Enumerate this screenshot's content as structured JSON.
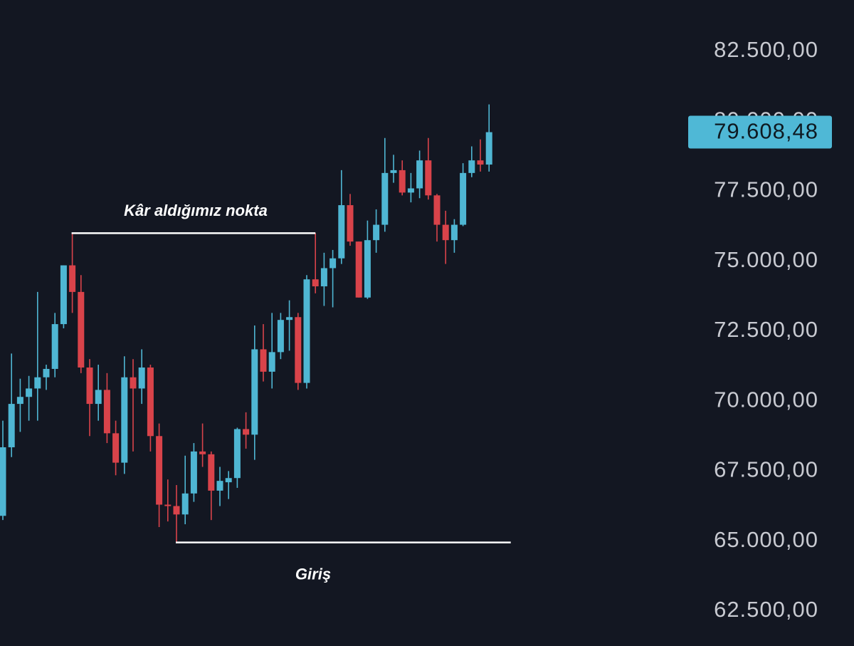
{
  "chart_data": {
    "type": "candlestick",
    "up_color": "#4fb6d3",
    "down_color": "#d9434a",
    "open": [
      65900,
      68350,
      69900,
      70150,
      70450,
      70850,
      71150,
      72750,
      74850,
      73900,
      71200,
      69900,
      70400,
      68850,
      67800,
      70850,
      70450,
      71200,
      68750,
      66300,
      66250,
      65950,
      66700,
      68200,
      68100,
      66800,
      67100,
      67250,
      69000,
      68800,
      71850,
      71050,
      71750,
      72900,
      73000,
      70650,
      74350,
      74100,
      74750,
      75100,
      77000,
      75700,
      73700,
      75750,
      76300,
      78150,
      78250,
      77450,
      77600,
      78600,
      77350,
      76300,
      75750,
      76300,
      78150,
      78600,
      78450
    ],
    "high": [
      69300,
      71700,
      70800,
      70900,
      73900,
      71300,
      73150,
      74850,
      76000,
      74500,
      71500,
      71300,
      71000,
      69300,
      71600,
      71500,
      71850,
      71300,
      69200,
      67200,
      67000,
      68050,
      68500,
      69200,
      68200,
      67650,
      67500,
      69050,
      69600,
      72700,
      72750,
      73150,
      73150,
      73600,
      73150,
      74500,
      76000,
      75300,
      75400,
      78250,
      77400,
      75700,
      76450,
      76850,
      79400,
      78800,
      78600,
      78150,
      78950,
      79400,
      77400,
      76800,
      76500,
      78500,
      79100,
      79350,
      80600
    ],
    "low": [
      65750,
      68000,
      68900,
      69300,
      69300,
      70400,
      70850,
      72600,
      73150,
      71000,
      68750,
      69300,
      68500,
      67350,
      67400,
      68200,
      69900,
      68200,
      65500,
      65700,
      64950,
      65600,
      66400,
      67650,
      65750,
      66250,
      66500,
      66900,
      68300,
      67900,
      70700,
      70450,
      71500,
      71800,
      70400,
      70450,
      73850,
      73400,
      73350,
      74900,
      75550,
      73700,
      73650,
      75300,
      76050,
      77800,
      77350,
      77100,
      77250,
      77200,
      75700,
      74900,
      75300,
      76250,
      78000,
      78200,
      78200
    ],
    "close": [
      68350,
      69900,
      70150,
      70450,
      70850,
      71150,
      72750,
      74850,
      73900,
      71200,
      69900,
      70400,
      68850,
      67800,
      70850,
      70450,
      71200,
      68750,
      66300,
      66250,
      65950,
      66700,
      68200,
      68100,
      66800,
      67150,
      67250,
      69000,
      68800,
      71850,
      71050,
      71750,
      72900,
      73000,
      70650,
      74350,
      74100,
      74750,
      75100,
      77000,
      75700,
      73700,
      75750,
      76300,
      78150,
      78250,
      77450,
      77600,
      78600,
      77350,
      76300,
      75750,
      76300,
      78150,
      78600,
      78450,
      79608.48
    ],
    "ylim": [
      61250,
      84330
    ],
    "yticks": [
      {
        "value": 62500,
        "label": "62.500,00"
      },
      {
        "value": 65000,
        "label": "65.000,00"
      },
      {
        "value": 67500,
        "label": "67.500,00"
      },
      {
        "value": 70000,
        "label": "70.000,00"
      },
      {
        "value": 72500,
        "label": "72.500,00"
      },
      {
        "value": 75000,
        "label": "75.000,00"
      },
      {
        "value": 77500,
        "label": "77.500,00"
      },
      {
        "value": 80000,
        "label": "80.000,00"
      },
      {
        "value": 82500,
        "label": "82.500,00"
      }
    ],
    "last_price": {
      "value": 79608.48,
      "label": "79.608,48",
      "color": "#4fb8d6"
    },
    "annotations": [
      {
        "text": "Kâr aldığımız nokta",
        "value": 76000
      },
      {
        "text": "Giriş",
        "value": 64950
      }
    ]
  }
}
